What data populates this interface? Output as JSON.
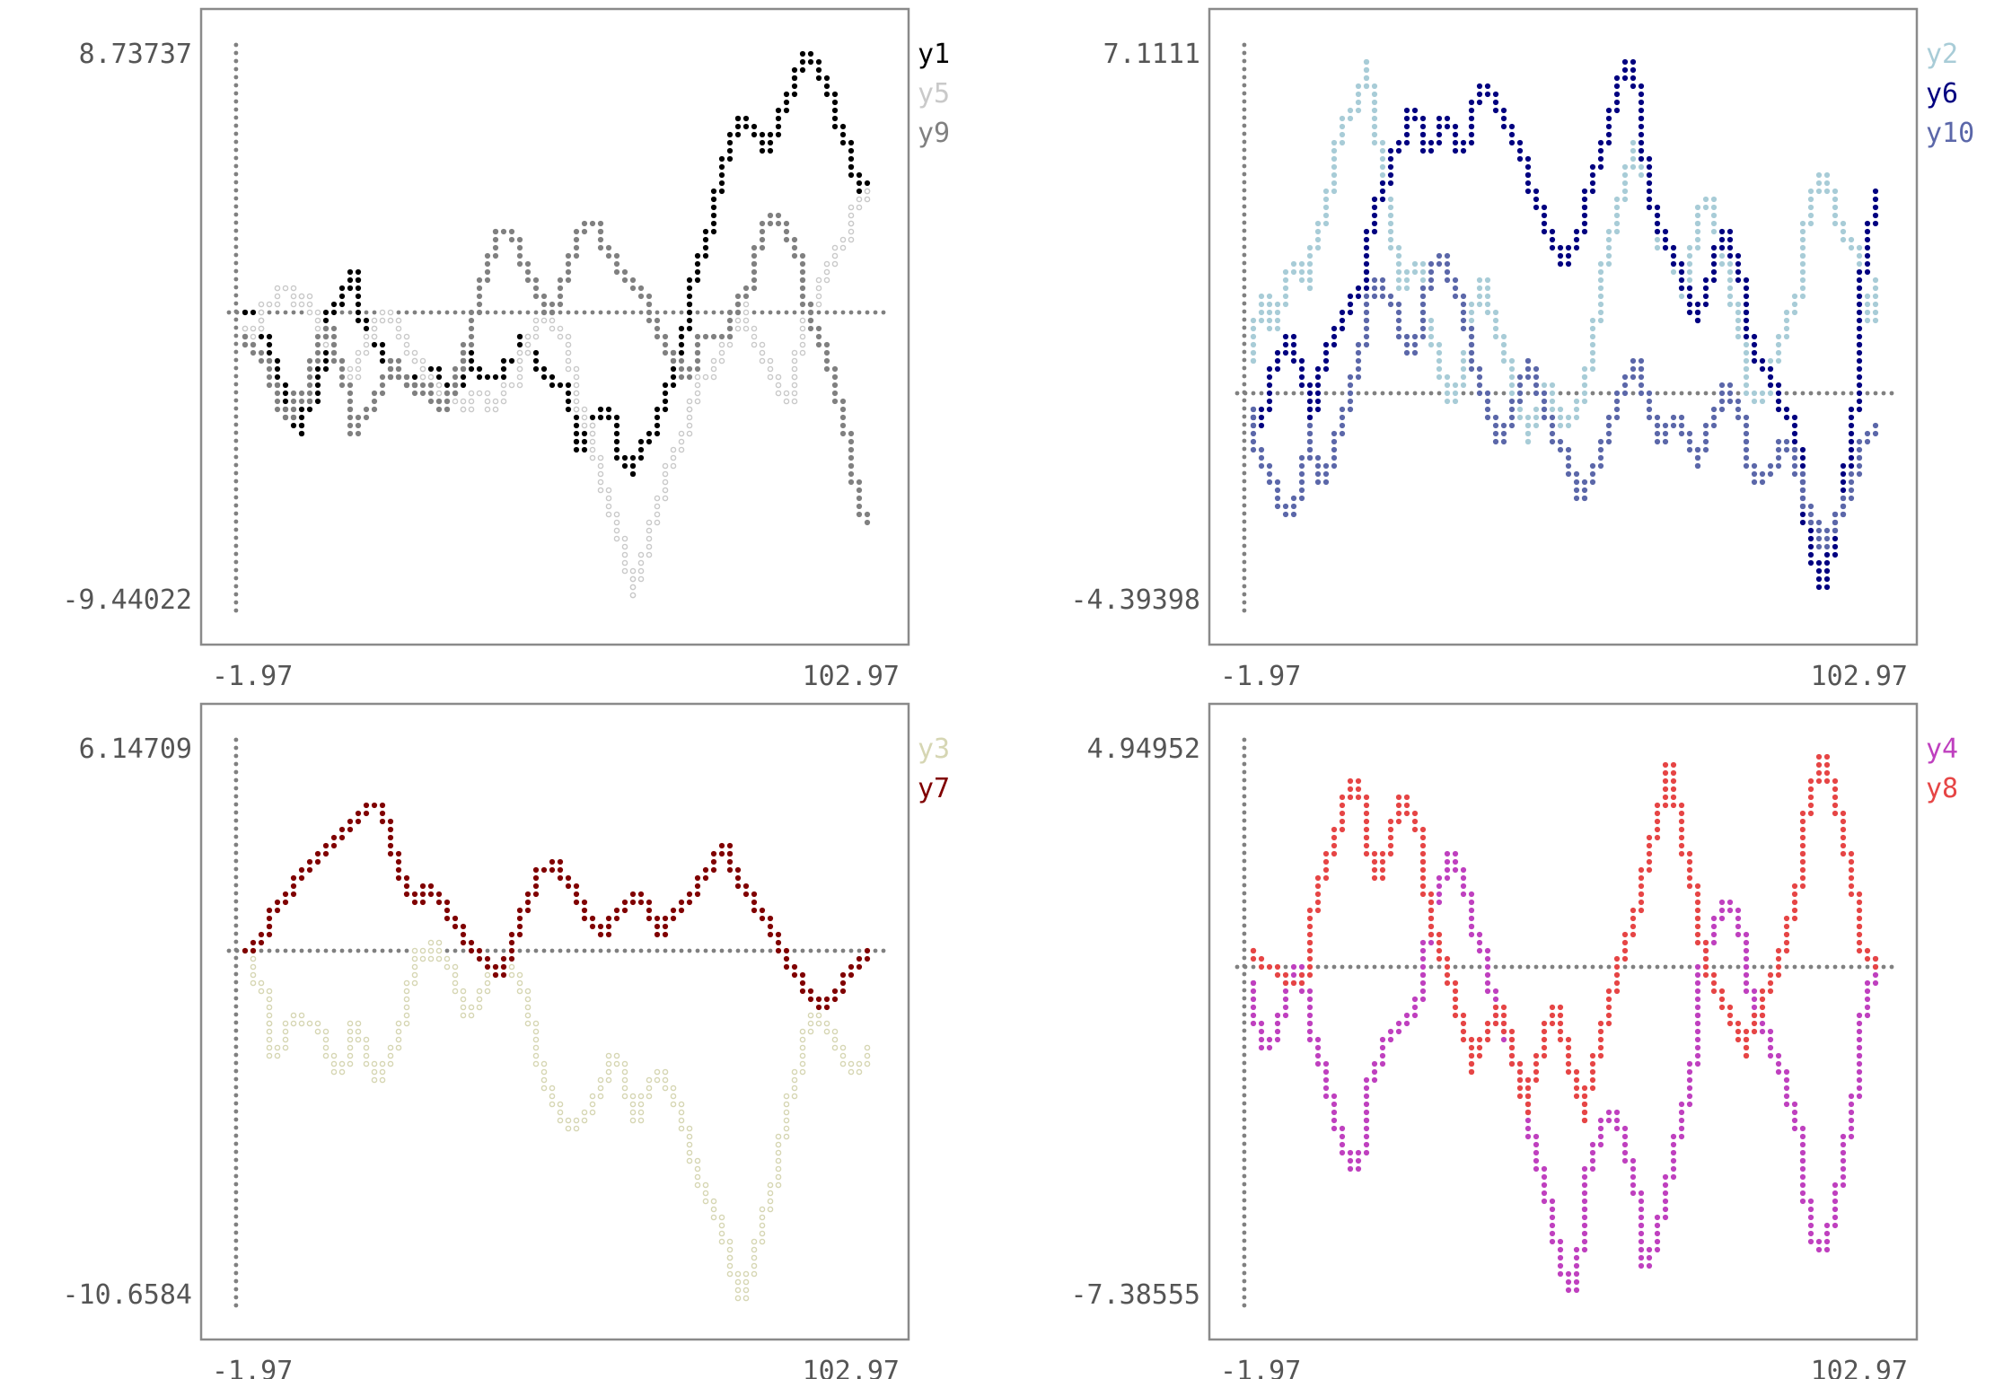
{
  "chart_data": [
    {
      "type": "scatter",
      "xlim": [
        -1.97,
        102.97
      ],
      "ylim": [
        -9.44022,
        8.73737
      ],
      "x_ticks": [
        "-1.97",
        "102.97"
      ],
      "y_ticks": [
        "-9.44022",
        "8.73737"
      ],
      "legend_placement": "right",
      "series": [
        {
          "name": "y1",
          "color": "#000000",
          "marker": "dot",
          "values": [
            0.0,
            0.0,
            0.0,
            -0.8,
            -1.5,
            -2.2,
            -3.3,
            -3.6,
            -3.8,
            -3.2,
            -2.7,
            -1.8,
            0.0,
            0.4,
            0.9,
            1.6,
            1.1,
            -0.1,
            -0.5,
            -1.0,
            -1.6,
            -1.9,
            -2.1,
            -2.2,
            -2.3,
            -2.0,
            -1.7,
            -1.8,
            -2.4,
            -2.6,
            -2.2,
            -1.5,
            -1.1,
            -1.7,
            -2.0,
            -2.1,
            -1.9,
            -1.5,
            -1.4,
            -0.8,
            -0.6,
            -1.3,
            -1.7,
            -2.1,
            -2.2,
            -2.4,
            -3.1,
            -4.1,
            -4.5,
            -4.0,
            -3.4,
            -3.2,
            -3.5,
            -4.6,
            -5.0,
            -5.2,
            -4.7,
            -4.1,
            -3.9,
            -3.1,
            -2.3,
            -1.3,
            -0.5,
            0.3,
            1.1,
            1.9,
            2.9,
            4.1,
            5.3,
            6.0,
            6.5,
            6.7,
            6.4,
            6.0,
            5.6,
            6.1,
            6.9,
            7.3,
            7.8,
            8.3,
            8.7,
            8.4,
            7.9,
            7.3,
            6.4,
            5.7,
            5.1,
            4.6,
            4.1,
            4.5
          ]
        },
        {
          "name": "y5",
          "color": "#c9c9c9",
          "marker": "ring",
          "values": [
            -0.4,
            -0.9,
            -0.3,
            0.3,
            0.5,
            0.9,
            0.8,
            0.3,
            0.6,
            0.7,
            0.2,
            -0.3,
            -0.9,
            -1.4,
            -1.8,
            -2.0,
            -1.6,
            -1.1,
            -0.6,
            -0.1,
            0.1,
            -0.2,
            -0.6,
            -1.2,
            -1.5,
            -1.4,
            -1.9,
            -2.4,
            -2.7,
            -2.5,
            -2.7,
            -3.2,
            -3.1,
            -2.6,
            -2.5,
            -3.2,
            -2.8,
            -2.4,
            -2.3,
            -1.7,
            -1.1,
            -0.6,
            -0.2,
            0.0,
            -0.4,
            -0.8,
            -1.8,
            -2.6,
            -3.0,
            -3.6,
            -4.7,
            -5.7,
            -6.5,
            -7.3,
            -8.4,
            -9.4,
            -8.7,
            -7.9,
            -6.8,
            -6.1,
            -5.1,
            -4.4,
            -3.9,
            -3.0,
            -2.8,
            -2.1,
            -1.9,
            -1.4,
            -0.9,
            -0.5,
            0.4,
            0.3,
            -0.5,
            -0.9,
            -1.4,
            -2.1,
            -2.5,
            -2.9,
            -2.0,
            -1.1,
            -0.2,
            0.4,
            1.1,
            1.8,
            2.4,
            2.6,
            3.1,
            3.5,
            3.9,
            4.1
          ]
        },
        {
          "name": "y9",
          "color": "#808080",
          "marker": "dot",
          "values": [
            -0.6,
            -0.9,
            -1.3,
            -1.6,
            -2.3,
            -3.2,
            -3.4,
            -3.0,
            -2.6,
            -2.7,
            -1.5,
            -0.6,
            -0.5,
            -1.4,
            -2.3,
            -3.0,
            -3.8,
            -3.4,
            -3.0,
            -2.6,
            -2.0,
            -1.6,
            -1.8,
            -2.1,
            -2.3,
            -2.5,
            -2.3,
            -2.9,
            -3.2,
            -3.1,
            -2.5,
            -1.8,
            -0.9,
            0.2,
            1.2,
            2.0,
            2.8,
            2.9,
            2.7,
            2.5,
            1.8,
            1.1,
            0.6,
            0.2,
            0.1,
            0.5,
            1.2,
            2.1,
            2.7,
            3.1,
            3.0,
            2.9,
            2.4,
            1.9,
            1.6,
            1.3,
            0.9,
            0.6,
            0.3,
            -0.2,
            -0.8,
            -1.1,
            -1.6,
            -2.0,
            -1.7,
            -1.3,
            -0.8,
            -0.6,
            -0.8,
            -0.6,
            0.0,
            0.7,
            1.0,
            1.8,
            2.4,
            3.1,
            3.3,
            3.1,
            2.6,
            1.9,
            1.1,
            0.3,
            -0.4,
            -1.0,
            -1.8,
            -2.9,
            -4.0,
            -5.0,
            -5.5,
            -6.5,
            -6.9
          ]
        }
      ]
    },
    {
      "type": "scatter",
      "xlim": [
        -1.97,
        102.97
      ],
      "ylim": [
        -4.39398,
        7.1111
      ],
      "x_ticks": [
        "-1.97",
        "102.97"
      ],
      "y_ticks": [
        "-4.39398",
        "7.1111"
      ],
      "legend_placement": "right",
      "series": [
        {
          "name": "y2",
          "color": "#a8ccd7",
          "marker": "dot",
          "values": [
            0.6,
            1.5,
            2.0,
            1.3,
            1.8,
            2.5,
            2.6,
            2.4,
            2.2,
            3.0,
            3.6,
            4.3,
            5.3,
            5.7,
            6.0,
            6.4,
            6.9,
            6.4,
            5.2,
            4.1,
            3.0,
            2.2,
            2.5,
            2.6,
            2.2,
            1.5,
            0.9,
            0.3,
            -0.2,
            0.2,
            0.8,
            1.2,
            1.9,
            2.3,
            1.6,
            1.1,
            0.6,
            -0.1,
            -0.6,
            -1.0,
            -0.8,
            -0.4,
            0.1,
            -0.3,
            -0.8,
            -0.6,
            -0.2,
            0.3,
            0.5,
            1.5,
            2.6,
            3.4,
            4.1,
            4.8,
            5.3,
            5.1,
            4.5,
            3.9,
            3.1,
            3.0,
            2.5,
            2.0,
            3.0,
            3.6,
            3.8,
            4.0,
            3.3,
            2.6,
            1.8,
            1.1,
            0.4,
            0.0,
            -0.2,
            0.0,
            0.6,
            1.1,
            1.6,
            2.0,
            2.8,
            3.6,
            4.3,
            4.5,
            4.3,
            3.6,
            3.2,
            3.0,
            2.5,
            2.0,
            1.5,
            2.3
          ]
        },
        {
          "name": "y6",
          "color": "#000080",
          "marker": "dot",
          "values": [
            -0.5,
            -0.8,
            -0.3,
            0.4,
            0.8,
            1.1,
            0.7,
            0.2,
            -0.5,
            -0.3,
            0.4,
            0.9,
            1.3,
            1.7,
            2.0,
            2.1,
            2.5,
            3.3,
            4.0,
            4.4,
            5.0,
            5.3,
            5.9,
            5.7,
            5.4,
            5.1,
            5.3,
            5.7,
            5.5,
            5.0,
            5.2,
            5.6,
            6.1,
            6.5,
            6.3,
            6.0,
            5.6,
            5.2,
            4.9,
            4.6,
            4.3,
            3.8,
            3.4,
            3.0,
            2.6,
            3.0,
            3.4,
            3.9,
            4.3,
            4.8,
            5.3,
            6.0,
            6.6,
            7.0,
            6.5,
            5.8,
            4.9,
            3.9,
            3.4,
            3.0,
            2.6,
            2.1,
            1.7,
            1.5,
            1.8,
            2.4,
            3.1,
            3.4,
            2.9,
            2.3,
            1.6,
            1.1,
            0.7,
            0.5,
            0.1,
            -0.3,
            -0.5,
            -1.3,
            -2.0,
            -2.8,
            -3.6,
            -4.2,
            -3.4,
            -2.6,
            -1.6,
            -0.4,
            1.0,
            2.5,
            3.5,
            4.3
          ]
        },
        {
          "name": "y10",
          "color": "#5b67a9",
          "marker": "dot",
          "values": [
            -0.4,
            -1.2,
            -1.5,
            -2.0,
            -2.4,
            -2.6,
            -2.2,
            -1.4,
            -0.8,
            -1.4,
            -2.0,
            -1.6,
            -0.9,
            -0.3,
            0.3,
            1.0,
            1.5,
            2.0,
            2.3,
            2.0,
            1.8,
            1.2,
            0.8,
            1.1,
            1.5,
            2.2,
            2.6,
            2.8,
            2.4,
            2.0,
            1.4,
            0.9,
            0.5,
            -0.1,
            -0.6,
            -1.0,
            -0.7,
            -0.2,
            0.3,
            0.7,
            0.5,
            0.0,
            -0.5,
            -1.0,
            -1.3,
            -1.8,
            -2.2,
            -2.3,
            -2.0,
            -1.6,
            -1.1,
            -0.5,
            0.0,
            0.3,
            0.7,
            0.4,
            -0.1,
            -0.6,
            -1.0,
            -0.7,
            -0.5,
            -0.9,
            -1.3,
            -1.5,
            -1.2,
            -0.8,
            -0.4,
            0.1,
            -0.2,
            -0.6,
            -1.0,
            -1.6,
            -2.0,
            -1.8,
            -1.5,
            -1.1,
            -1.3,
            -1.7,
            -2.0,
            -2.4,
            -2.8,
            -3.2,
            -3.0,
            -2.6,
            -2.2,
            -1.8,
            -1.4,
            -1.1,
            -0.9,
            -0.7
          ]
        }
      ]
    },
    {
      "type": "scatter",
      "xlim": [
        -1.97,
        102.97
      ],
      "ylim": [
        -10.6584,
        6.14709
      ],
      "x_ticks": [
        "-1.97",
        "102.97"
      ],
      "y_ticks": [
        "-10.6584",
        "6.14709"
      ],
      "legend_placement": "right",
      "series": [
        {
          "name": "y3",
          "color": "#d6d6b3",
          "marker": "ring",
          "values": [
            0.0,
            -1.0,
            -1.4,
            -2.2,
            -3.4,
            -3.0,
            -2.4,
            -2.1,
            -2.3,
            -2.2,
            -2.6,
            -3.3,
            -3.8,
            -3.5,
            -2.4,
            -2.7,
            -3.5,
            -4.0,
            -3.5,
            -3.0,
            -2.3,
            -1.1,
            0.0,
            -0.3,
            0.1,
            -0.3,
            -0.6,
            -1.2,
            -2.1,
            -1.9,
            -1.3,
            -0.9,
            -0.6,
            -0.5,
            -0.9,
            -1.4,
            -2.4,
            -3.5,
            -4.2,
            -4.8,
            -5.3,
            -5.6,
            -5.2,
            -5.0,
            -4.5,
            -4.0,
            -3.3,
            -3.5,
            -4.5,
            -5.2,
            -4.6,
            -4.0,
            -3.8,
            -4.3,
            -4.8,
            -5.6,
            -6.5,
            -7.2,
            -7.8,
            -8.4,
            -9.0,
            -9.5,
            -10.1,
            -10.7,
            -9.9,
            -9.0,
            -8.1,
            -7.2,
            -5.7,
            -4.6,
            -3.8,
            -2.6,
            -2.0,
            -2.3,
            -2.6,
            -3.1,
            -3.6,
            -3.9,
            -3.5,
            -3.0
          ]
        },
        {
          "name": "y7",
          "color": "#800000",
          "marker": "dot",
          "values": [
            0.0,
            0.3,
            0.5,
            0.7,
            1.1,
            1.3,
            1.7,
            2.1,
            2.3,
            2.7,
            2.9,
            3.2,
            3.5,
            3.7,
            3.9,
            4.1,
            4.3,
            4.5,
            3.8,
            3.0,
            2.2,
            1.6,
            1.5,
            1.9,
            1.7,
            1.3,
            1.0,
            0.6,
            0.2,
            0.0,
            -0.3,
            -0.5,
            -0.7,
            -0.2,
            0.5,
            1.1,
            1.7,
            2.3,
            2.5,
            2.6,
            2.2,
            1.8,
            1.4,
            1.0,
            0.6,
            0.5,
            0.8,
            1.1,
            1.4,
            1.7,
            1.3,
            0.9,
            0.5,
            0.8,
            1.1,
            1.4,
            1.7,
            2.1,
            2.4,
            2.8,
            3.1,
            2.8,
            2.4,
            2.0,
            1.6,
            1.2,
            0.8,
            0.4,
            -0.1,
            -0.5,
            -0.8,
            -1.2,
            -1.5,
            -1.8,
            -1.6,
            -1.2,
            -0.9,
            -0.6,
            -0.3,
            0.0
          ]
        }
      ]
    },
    {
      "type": "scatter",
      "xlim": [
        -1.97,
        102.97
      ],
      "ylim": [
        -7.38555,
        4.94952
      ],
      "x_ticks": [
        "-1.97",
        "102.97"
      ],
      "y_ticks": [
        "-7.38555",
        "4.94952"
      ],
      "legend_placement": "right",
      "series": [
        {
          "name": "y4",
          "color": "#bf40bf",
          "marker": "dot",
          "values": [
            -0.4,
            -1.2,
            -1.8,
            -1.6,
            -1.1,
            -0.4,
            0.0,
            -0.6,
            -1.2,
            -1.6,
            -2.1,
            -2.9,
            -3.6,
            -4.1,
            -4.5,
            -4.2,
            -3.4,
            -2.6,
            -2.1,
            -1.6,
            -1.4,
            -1.2,
            -1.0,
            -0.8,
            -0.2,
            0.5,
            1.4,
            2.1,
            2.6,
            2.3,
            1.6,
            1.0,
            0.7,
            0.4,
            -0.5,
            -1.2,
            -1.6,
            -2.2,
            -2.6,
            -3.2,
            -3.9,
            -4.6,
            -5.3,
            -6.1,
            -7.0,
            -7.2,
            -6.4,
            -5.4,
            -4.5,
            -4.0,
            -3.5,
            -3.2,
            -3.6,
            -4.3,
            -5.1,
            -5.9,
            -6.7,
            -6.4,
            -5.6,
            -4.7,
            -3.8,
            -3.0,
            -2.1,
            -1.0,
            0.0,
            0.5,
            1.2,
            1.5,
            1.3,
            0.7,
            0.1,
            -0.5,
            -1.1,
            -1.5,
            -1.9,
            -2.4,
            -3.0,
            -3.7,
            -4.4,
            -5.2,
            -6.1,
            -6.4,
            -5.8,
            -4.9,
            -3.9,
            -2.9,
            -2.0,
            -1.1,
            -0.3,
            0.2
          ]
        },
        {
          "name": "y8",
          "color": "#e64545",
          "marker": "dot",
          "values": [
            0.3,
            0.2,
            0.1,
            0.0,
            -0.2,
            -0.4,
            -0.4,
            -0.1,
            0.6,
            1.3,
            2.0,
            2.6,
            3.2,
            3.8,
            4.3,
            3.8,
            3.0,
            2.6,
            2.1,
            2.6,
            3.3,
            3.9,
            3.5,
            3.2,
            2.4,
            1.6,
            0.8,
            0.2,
            -0.4,
            -1.0,
            -1.6,
            -2.3,
            -2.0,
            -1.6,
            -1.2,
            -0.9,
            -1.5,
            -2.1,
            -2.9,
            -3.3,
            -2.6,
            -1.9,
            -1.3,
            -0.9,
            -1.6,
            -2.4,
            -2.9,
            -3.4,
            -2.8,
            -2.0,
            -1.2,
            -0.5,
            0.2,
            0.8,
            1.3,
            1.7,
            2.2,
            2.9,
            3.7,
            4.5,
            3.6,
            2.6,
            1.8,
            1.1,
            0.5,
            -0.1,
            -0.5,
            -0.9,
            -1.3,
            -1.7,
            -2.0,
            -1.5,
            -1.0,
            -0.6,
            -0.1,
            0.4,
            1.1,
            1.8,
            2.6,
            3.4,
            4.2,
            4.7,
            4.2,
            3.4,
            2.6,
            1.7,
            0.9,
            0.4,
            0.2,
            0.0
          ]
        }
      ]
    }
  ],
  "colors": {
    "frame": "#8a8a8a",
    "tick_text": "#555555",
    "axis_dots": "#808080"
  }
}
